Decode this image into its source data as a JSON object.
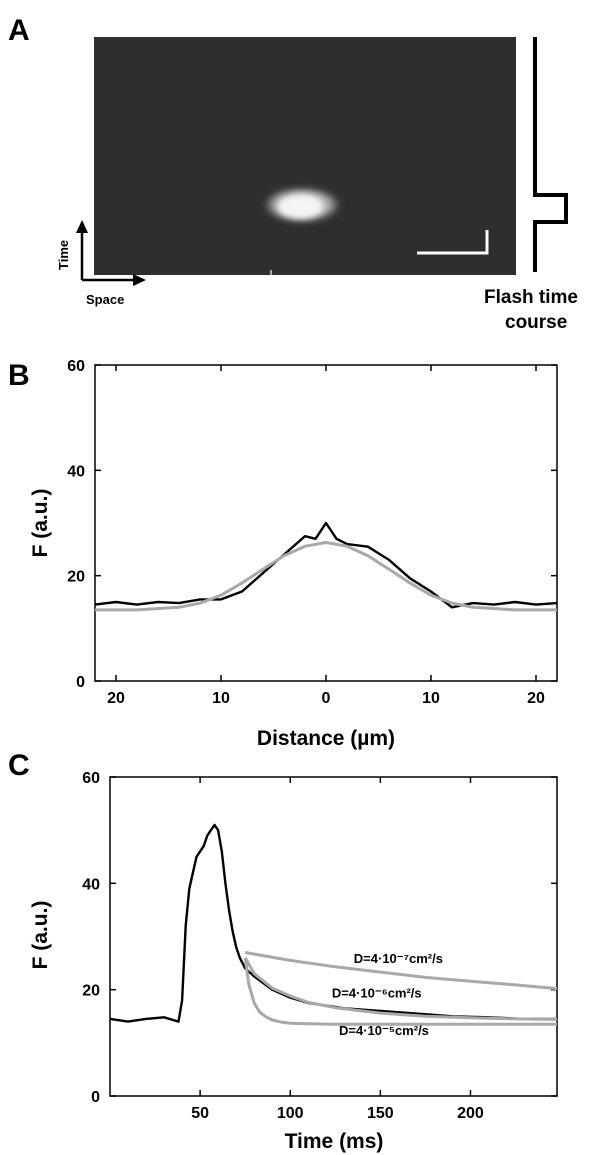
{
  "panel_a": {
    "letter": "A",
    "y_arrow_label": "Time",
    "x_arrow_label": "Space",
    "flash_label_line1": "Flash time",
    "flash_label_line2": "course"
  },
  "chart_data": [
    {
      "panel": "B",
      "type": "line",
      "xlabel": "Distance (µm)",
      "ylabel": "F (a.u.)",
      "xlim": [
        -22,
        22
      ],
      "ylim": [
        0,
        60
      ],
      "xticks": [
        -20,
        -10,
        0,
        10,
        20
      ],
      "xtick_labels": [
        "20",
        "10",
        "0",
        "10",
        "20"
      ],
      "yticks": [
        0,
        20,
        40,
        60
      ],
      "grid": false,
      "series": [
        {
          "style": "black-noisy",
          "x": [
            -22,
            -20,
            -18,
            -16,
            -14,
            -12,
            -10,
            -8,
            -6,
            -4,
            -2,
            -1,
            0,
            1,
            2,
            4,
            6,
            8,
            10,
            12,
            14,
            16,
            18,
            20,
            22
          ],
          "y": [
            14.5,
            15,
            14.5,
            15,
            14.8,
            15.5,
            15.5,
            17,
            20.5,
            24,
            27.5,
            27,
            30,
            27,
            26,
            25.5,
            23,
            19.5,
            17,
            14,
            14.8,
            14.5,
            15,
            14.5,
            14.8
          ]
        },
        {
          "style": "gray-fit",
          "x": [
            -22,
            -18,
            -14,
            -12,
            -10,
            -8,
            -6,
            -4,
            -2,
            0,
            2,
            4,
            6,
            8,
            10,
            12,
            14,
            18,
            22
          ],
          "y": [
            13.5,
            13.5,
            14,
            14.8,
            16.3,
            18.6,
            21.2,
            23.8,
            25.6,
            26.3,
            25.6,
            23.8,
            21.2,
            18.6,
            16.3,
            14.8,
            14,
            13.5,
            13.5
          ]
        }
      ]
    },
    {
      "panel": "C",
      "type": "line",
      "xlabel": "Time (ms)",
      "ylabel": "F (a.u.)",
      "xlim": [
        0,
        248
      ],
      "ylim": [
        0,
        60
      ],
      "xticks": [
        50,
        100,
        150,
        200
      ],
      "yticks": [
        0,
        20,
        40,
        60
      ],
      "grid": false,
      "series": [
        {
          "style": "black-trace",
          "x": [
            0,
            10,
            20,
            30,
            38,
            40,
            42,
            44,
            46,
            48,
            50,
            52,
            54,
            56,
            58,
            60,
            62,
            64,
            66,
            68,
            70,
            72,
            75,
            80,
            90,
            100,
            110,
            120,
            130,
            150,
            170,
            190,
            210,
            230,
            248
          ],
          "y": [
            14.5,
            14,
            14.5,
            14.8,
            14,
            18,
            32,
            39,
            42,
            45,
            46,
            47,
            49,
            50,
            51,
            50,
            46,
            40,
            35,
            31,
            28,
            26,
            24,
            22.5,
            20,
            18.5,
            17.5,
            17,
            16.5,
            16,
            15.5,
            15,
            14.8,
            14.5,
            14.5
          ]
        },
        {
          "name": "D=4·10⁻⁷cm²/s",
          "style": "gray-fit",
          "x": [
            75,
            100,
            125,
            150,
            175,
            200,
            225,
            248
          ],
          "y": [
            27,
            25.5,
            24.3,
            23.3,
            22.3,
            21.6,
            20.9,
            20.2
          ]
        },
        {
          "name": "D=4·10⁻⁶cm²/s",
          "style": "gray-fit",
          "x": [
            75,
            80,
            90,
            100,
            110,
            125,
            150,
            175,
            200,
            225,
            248
          ],
          "y": [
            26,
            23,
            20.3,
            18.8,
            17.6,
            16.6,
            15.6,
            15,
            14.7,
            14.5,
            14.4
          ]
        },
        {
          "name": "D=4·10⁻⁵cm²/s",
          "style": "gray-fit",
          "x": [
            75,
            77,
            80,
            83,
            86,
            90,
            95,
            100,
            110,
            125,
            150,
            200,
            248
          ],
          "y": [
            26,
            21,
            17.5,
            15.8,
            15,
            14.3,
            13.9,
            13.7,
            13.6,
            13.5,
            13.5,
            13.5,
            13.5
          ]
        }
      ],
      "annotations": [
        {
          "text": "D=4·10⁻⁷cm²/s",
          "x": 160,
          "y": 25
        },
        {
          "text": "D=4·10⁻⁶cm²/s",
          "x": 148,
          "y": 18.5
        },
        {
          "text": "D=4·10⁻⁵cm²/s",
          "x": 152,
          "y": 11.5
        }
      ]
    }
  ]
}
